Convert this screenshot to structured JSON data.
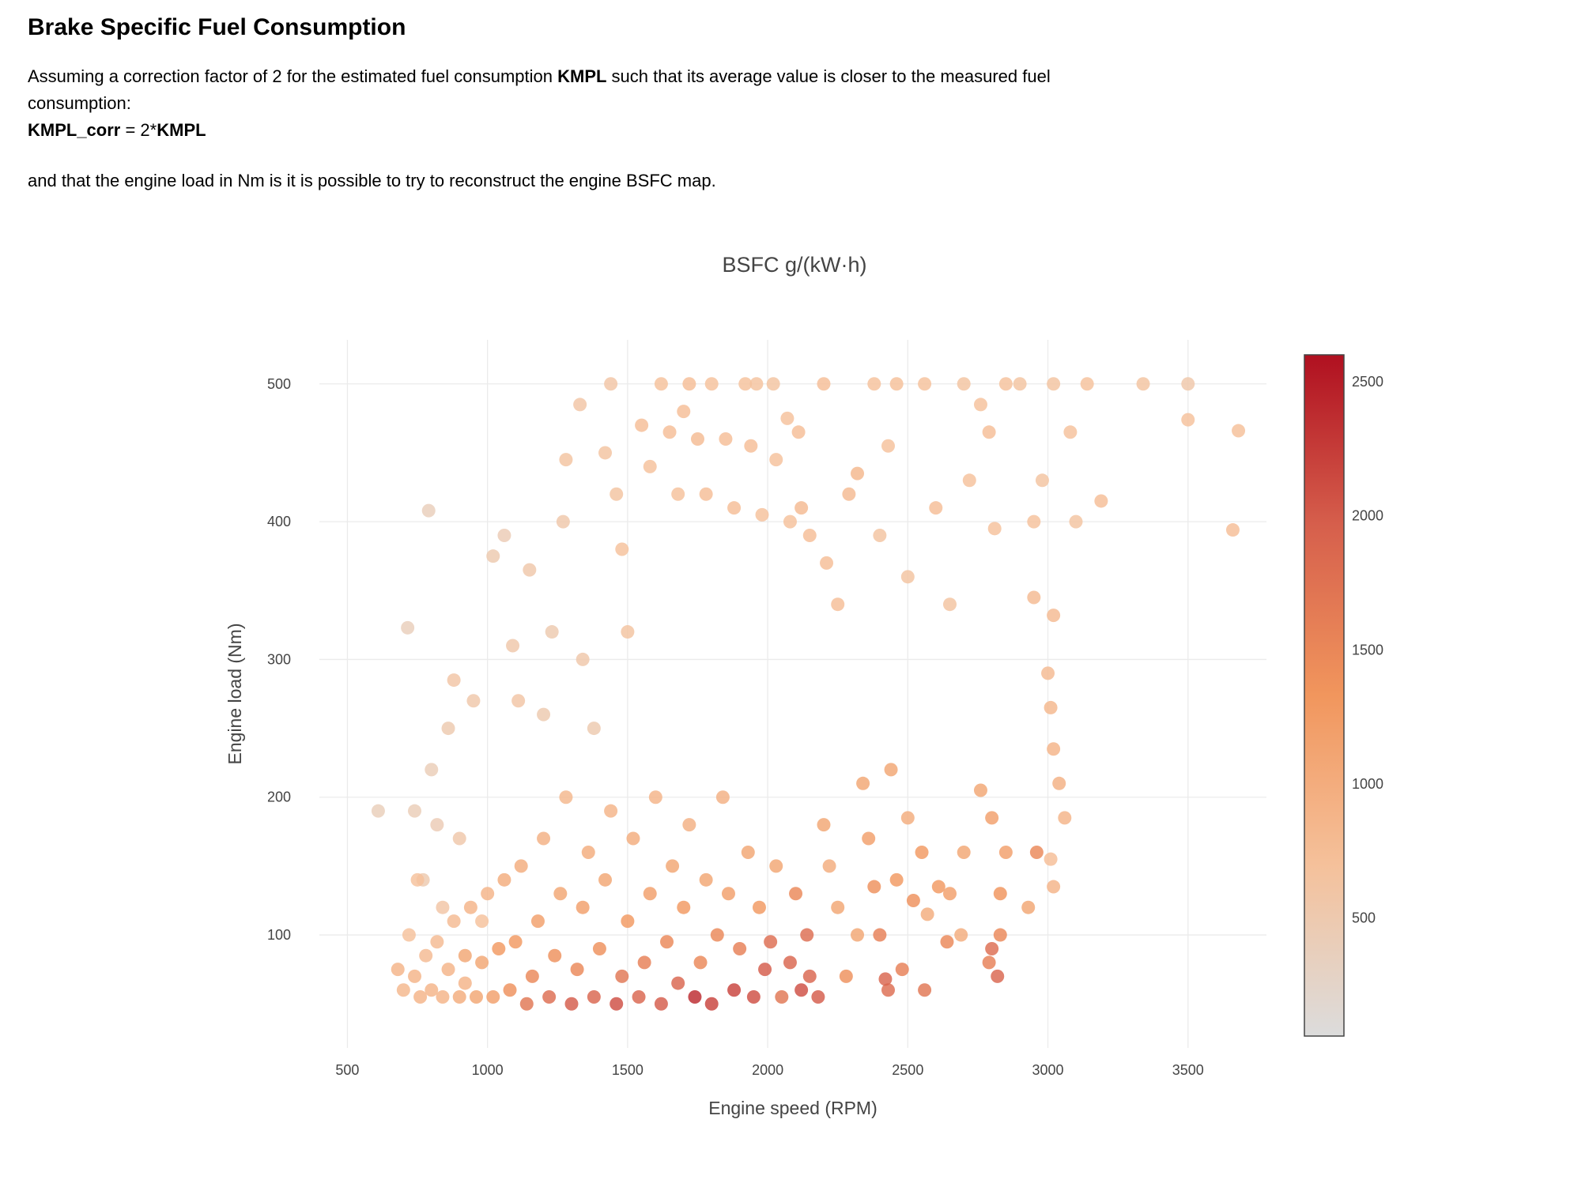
{
  "doc": {
    "heading": "Brake Specific Fuel Consumption",
    "para1_a": "Assuming a correction factor of 2 for the estimated fuel consumption ",
    "para1_kmpl": "KMPL",
    "para1_b": " such that its average value is closer to the measured fuel consumption:",
    "formula_lhs": "KMPL_corr",
    "formula_mid": " = 2*",
    "formula_rhs": "KMPL",
    "para2": "and that the engine load in Nm is it is possible to try to reconstruct the engine BSFC map."
  },
  "chart_data": {
    "type": "scatter",
    "title": "BSFC g/(kW·h)",
    "xlabel": "Engine speed (RPM)",
    "ylabel": "Engine load (Nm)",
    "xlim": [
      400,
      3780
    ],
    "ylim": [
      18,
      532
    ],
    "x_ticks": [
      "500",
      "1000",
      "1500",
      "2000",
      "2500",
      "3000",
      "3500"
    ],
    "y_ticks": [
      "100",
      "200",
      "300",
      "400",
      "500"
    ],
    "grid": true,
    "colorbar": {
      "min": 60,
      "max": 2600,
      "ticks": [
        "500",
        "1000",
        "1500",
        "2000",
        "2500"
      ],
      "colorscale": [
        "#dcdcdc",
        "#f5c19b",
        "#f1965d",
        "#d65f4c",
        "#b01020"
      ]
    },
    "points": [
      [
        790,
        408,
        380
      ],
      [
        715,
        323,
        380
      ],
      [
        610,
        190,
        400
      ],
      [
        740,
        190,
        420
      ],
      [
        680,
        75,
        900
      ],
      [
        700,
        60,
        850
      ],
      [
        770,
        140,
        500
      ],
      [
        800,
        220,
        420
      ],
      [
        820,
        180,
        450
      ],
      [
        840,
        120,
        600
      ],
      [
        860,
        250,
        500
      ],
      [
        880,
        285,
        600
      ],
      [
        900,
        170,
        550
      ],
      [
        920,
        65,
        900
      ],
      [
        950,
        270,
        550
      ],
      [
        980,
        110,
        700
      ],
      [
        1020,
        375,
        500
      ],
      [
        1060,
        390,
        450
      ],
      [
        1090,
        310,
        550
      ],
      [
        1110,
        270,
        600
      ],
      [
        1150,
        365,
        550
      ],
      [
        1200,
        260,
        500
      ],
      [
        1230,
        320,
        500
      ],
      [
        1270,
        400,
        550
      ],
      [
        1280,
        445,
        650
      ],
      [
        1330,
        485,
        600
      ],
      [
        1340,
        300,
        550
      ],
      [
        1380,
        250,
        500
      ],
      [
        1420,
        450,
        650
      ],
      [
        1440,
        500,
        600
      ],
      [
        1460,
        420,
        650
      ],
      [
        1480,
        380,
        700
      ],
      [
        1500,
        320,
        650
      ],
      [
        1550,
        470,
        750
      ],
      [
        1580,
        440,
        700
      ],
      [
        1620,
        500,
        700
      ],
      [
        1650,
        465,
        750
      ],
      [
        1680,
        420,
        700
      ],
      [
        1700,
        480,
        750
      ],
      [
        1720,
        500,
        750
      ],
      [
        1750,
        460,
        780
      ],
      [
        1780,
        420,
        750
      ],
      [
        1800,
        500,
        700
      ],
      [
        1850,
        460,
        750
      ],
      [
        1880,
        410,
        750
      ],
      [
        1920,
        500,
        700
      ],
      [
        1940,
        455,
        750
      ],
      [
        1960,
        500,
        680
      ],
      [
        1980,
        405,
        700
      ],
      [
        2020,
        500,
        650
      ],
      [
        2030,
        445,
        700
      ],
      [
        2070,
        475,
        700
      ],
      [
        2080,
        400,
        700
      ],
      [
        2110,
        465,
        750
      ],
      [
        2120,
        410,
        800
      ],
      [
        2150,
        390,
        750
      ],
      [
        2200,
        500,
        750
      ],
      [
        2210,
        370,
        750
      ],
      [
        2250,
        340,
        750
      ],
      [
        2290,
        420,
        800
      ],
      [
        2320,
        435,
        850
      ],
      [
        2380,
        500,
        700
      ],
      [
        2400,
        390,
        650
      ],
      [
        2430,
        455,
        700
      ],
      [
        2460,
        500,
        720
      ],
      [
        2500,
        360,
        650
      ],
      [
        2560,
        500,
        700
      ],
      [
        2600,
        410,
        750
      ],
      [
        2650,
        340,
        650
      ],
      [
        2700,
        500,
        650
      ],
      [
        2720,
        430,
        700
      ],
      [
        2760,
        485,
        700
      ],
      [
        2790,
        465,
        750
      ],
      [
        2810,
        395,
        700
      ],
      [
        2850,
        500,
        700
      ],
      [
        2900,
        500,
        650
      ],
      [
        2950,
        400,
        700
      ],
      [
        2980,
        430,
        650
      ],
      [
        3020,
        500,
        650
      ],
      [
        3080,
        465,
        700
      ],
      [
        3100,
        400,
        650
      ],
      [
        3140,
        500,
        700
      ],
      [
        3190,
        415,
        750
      ],
      [
        3340,
        500,
        650
      ],
      [
        3500,
        500,
        550
      ],
      [
        3500,
        474,
        700
      ],
      [
        3660,
        394,
        750
      ],
      [
        3680,
        466,
        720
      ],
      [
        2950,
        345,
        800
      ],
      [
        3020,
        332,
        800
      ],
      [
        3000,
        290,
        800
      ],
      [
        3010,
        265,
        850
      ],
      [
        3020,
        235,
        900
      ],
      [
        3040,
        210,
        950
      ],
      [
        3060,
        185,
        900
      ],
      [
        3010,
        155,
        750
      ],
      [
        3020,
        135,
        900
      ],
      [
        2960,
        160,
        1500
      ],
      [
        2930,
        120,
        1100
      ],
      [
        2850,
        160,
        1200
      ],
      [
        2830,
        130,
        1350
      ],
      [
        2830,
        100,
        1500
      ],
      [
        2800,
        90,
        1800
      ],
      [
        2820,
        70,
        1900
      ],
      [
        2790,
        80,
        1600
      ],
      [
        2800,
        185,
        1200
      ],
      [
        2760,
        205,
        1100
      ],
      [
        2700,
        160,
        1100
      ],
      [
        2690,
        100,
        1000
      ],
      [
        2640,
        95,
        1500
      ],
      [
        2650,
        130,
        1200
      ],
      [
        2610,
        135,
        1300
      ],
      [
        2570,
        115,
        1000
      ],
      [
        2560,
        60,
        1700
      ],
      [
        2550,
        160,
        1300
      ],
      [
        2520,
        125,
        1400
      ],
      [
        2500,
        185,
        1000
      ],
      [
        2480,
        75,
        1600
      ],
      [
        2460,
        140,
        1300
      ],
      [
        2440,
        220,
        1100
      ],
      [
        2430,
        60,
        1800
      ],
      [
        2420,
        68,
        1900
      ],
      [
        2400,
        100,
        1600
      ],
      [
        2380,
        135,
        1400
      ],
      [
        2360,
        170,
        1200
      ],
      [
        2340,
        210,
        1100
      ],
      [
        2320,
        100,
        1100
      ],
      [
        2280,
        70,
        1400
      ],
      [
        2250,
        120,
        1100
      ],
      [
        2220,
        150,
        1000
      ],
      [
        2200,
        180,
        1100
      ],
      [
        2180,
        55,
        2000
      ],
      [
        2150,
        70,
        1900
      ],
      [
        2140,
        100,
        1800
      ],
      [
        2120,
        60,
        2100
      ],
      [
        2100,
        130,
        1500
      ],
      [
        2080,
        80,
        1900
      ],
      [
        2050,
        55,
        1700
      ],
      [
        2030,
        150,
        1100
      ],
      [
        2010,
        95,
        1800
      ],
      [
        1990,
        75,
        2000
      ],
      [
        1970,
        120,
        1300
      ],
      [
        1950,
        55,
        2100
      ],
      [
        1930,
        160,
        1100
      ],
      [
        1900,
        90,
        1600
      ],
      [
        1880,
        60,
        2200
      ],
      [
        1860,
        130,
        1200
      ],
      [
        1840,
        200,
        950
      ],
      [
        1820,
        100,
        1500
      ],
      [
        1800,
        50,
        2200
      ],
      [
        1780,
        140,
        1100
      ],
      [
        1760,
        80,
        1500
      ],
      [
        1740,
        55,
        2400
      ],
      [
        1720,
        180,
        950
      ],
      [
        1700,
        120,
        1300
      ],
      [
        1680,
        65,
        1900
      ],
      [
        1660,
        150,
        1100
      ],
      [
        1640,
        95,
        1500
      ],
      [
        1620,
        50,
        2000
      ],
      [
        1600,
        200,
        900
      ],
      [
        1580,
        130,
        1200
      ],
      [
        1560,
        80,
        1600
      ],
      [
        1540,
        55,
        1900
      ],
      [
        1520,
        170,
        1000
      ],
      [
        1500,
        110,
        1300
      ],
      [
        1480,
        70,
        1700
      ],
      [
        1460,
        50,
        2100
      ],
      [
        1440,
        190,
        900
      ],
      [
        1420,
        140,
        1100
      ],
      [
        1400,
        90,
        1400
      ],
      [
        1380,
        55,
        1900
      ],
      [
        1360,
        160,
        1000
      ],
      [
        1340,
        120,
        1200
      ],
      [
        1320,
        75,
        1500
      ],
      [
        1300,
        50,
        2000
      ],
      [
        1280,
        200,
        850
      ],
      [
        1260,
        130,
        1100
      ],
      [
        1240,
        85,
        1400
      ],
      [
        1220,
        55,
        1800
      ],
      [
        1200,
        170,
        950
      ],
      [
        1180,
        110,
        1200
      ],
      [
        1160,
        70,
        1500
      ],
      [
        1140,
        50,
        1700
      ],
      [
        1120,
        150,
        1000
      ],
      [
        1100,
        95,
        1300
      ],
      [
        1080,
        60,
        1400
      ],
      [
        1060,
        140,
        1000
      ],
      [
        1040,
        90,
        1300
      ],
      [
        1020,
        55,
        1200
      ],
      [
        1000,
        130,
        900
      ],
      [
        980,
        80,
        1100
      ],
      [
        960,
        55,
        1100
      ],
      [
        940,
        120,
        900
      ],
      [
        920,
        85,
        1100
      ],
      [
        900,
        55,
        1000
      ],
      [
        880,
        110,
        800
      ],
      [
        860,
        75,
        900
      ],
      [
        840,
        55,
        900
      ],
      [
        820,
        95,
        800
      ],
      [
        800,
        60,
        900
      ],
      [
        780,
        85,
        800
      ],
      [
        760,
        55,
        900
      ],
      [
        740,
        70,
        900
      ],
      [
        720,
        100,
        700
      ],
      [
        750,
        140,
        700
      ]
    ]
  }
}
